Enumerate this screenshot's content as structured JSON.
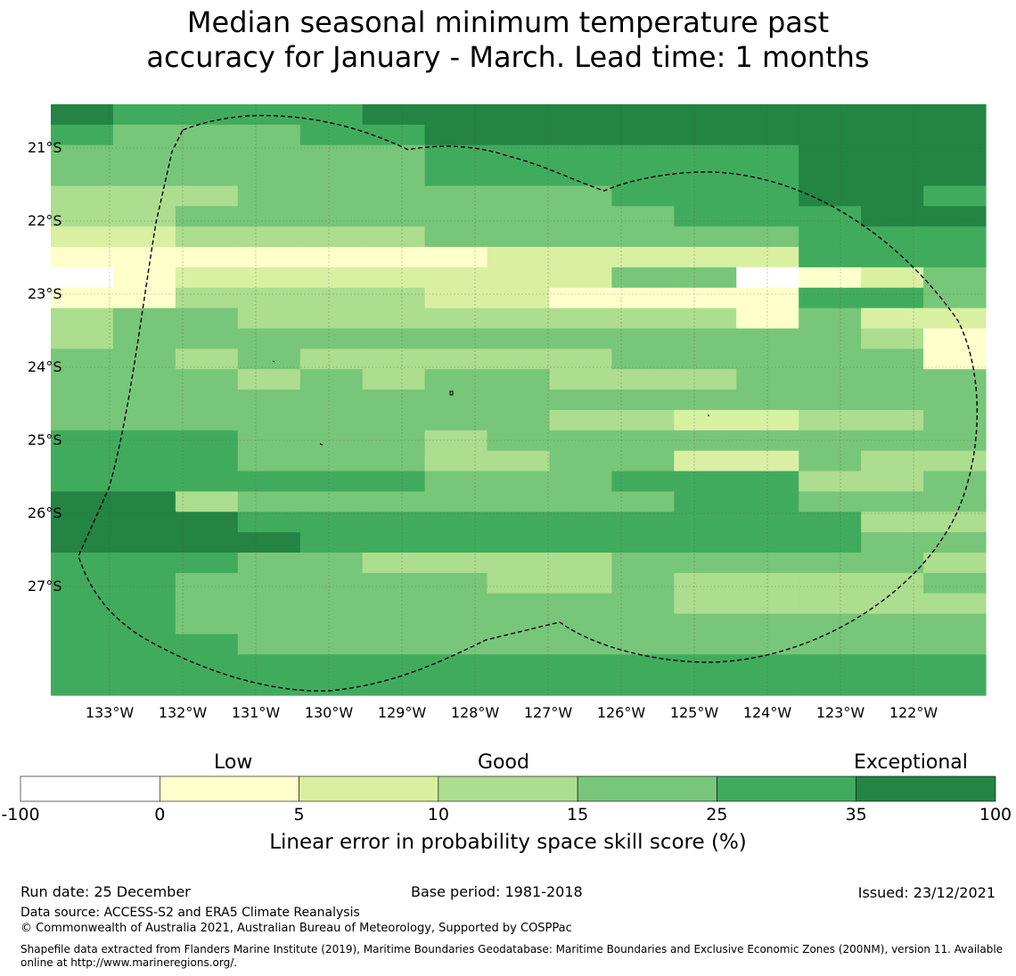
{
  "title_line1": "Median seasonal minimum temperature past",
  "title_line2": "accuracy for January - March. Lead time: 1 months",
  "chart_data": {
    "type": "heatmap",
    "description_units": "Linear error in probability space skill score (%) binned into classes",
    "lon_labels": [
      "133°W",
      "132°W",
      "131°W",
      "130°W",
      "129°W",
      "128°W",
      "127°W",
      "126°W",
      "125°W",
      "124°W",
      "123°W",
      "122°W"
    ],
    "lat_labels": [
      "21°S",
      "22°S",
      "23°S",
      "24°S",
      "25°S",
      "26°S",
      "27°S"
    ],
    "bins": [
      {
        "min": -100,
        "max": 0,
        "color": "#ffffff"
      },
      {
        "min": 0,
        "max": 5,
        "color": "#ffffcc"
      },
      {
        "min": 5,
        "max": 10,
        "color": "#d9f0a3"
      },
      {
        "min": 10,
        "max": 15,
        "color": "#addd8e"
      },
      {
        "min": 15,
        "max": 25,
        "color": "#78c679"
      },
      {
        "min": 25,
        "max": 35,
        "color": "#41ab5d"
      },
      {
        "min": 35,
        "max": 100,
        "color": "#238443"
      }
    ],
    "grid_class_rows": [
      "655556666666666",
      "544455666666666",
      "444444555555666",
      "444444555555666",
      "333444444555665",
      "334444444455566",
      "223333444444555",
      "111111122222555",
      "012222222440124",
      "113333221111554",
      "344333333331422",
      "344444444444431",
      "443433333444441",
      "444343443334444",
      "444444444444444",
      "444444443322334",
      "555444344444444",
      "555444334422433",
      "555555444555334",
      "663444444455444",
      "666555555555533",
      "666655555555544",
      "555443333444443",
      "554444433433334",
      "554444444433333",
      "554444444444444",
      "555444444444444",
      "555555555555555",
      "555555555555555"
    ],
    "colorbar": {
      "top_labels": [
        "Low",
        "Good",
        "Exceptional"
      ],
      "ticks": [
        "-100",
        "0",
        "5",
        "10",
        "15",
        "25",
        "35",
        "100"
      ],
      "label": "Linear error in probability space skill score (%)"
    }
  },
  "footer": {
    "run_date": "Run date: 25 December",
    "base_period": "Base period: 1981-2018",
    "issued": "Issued: 23/12/2021",
    "data_source": "Data source: ACCESS-S2 and ERA5 Climate Reanalysis",
    "copyright": "© Commonwealth of Australia 2021, Australian Bureau of Meteorology, Supported by COSPPac",
    "shapefile": "Shapefile data extracted from Flanders Marine Institute (2019), Maritime Boundaries Geodatabase: Maritime Boundaries and Exclusive Economic Zones (200NM), version 11. Available online at http://www.marineregions.org/."
  }
}
